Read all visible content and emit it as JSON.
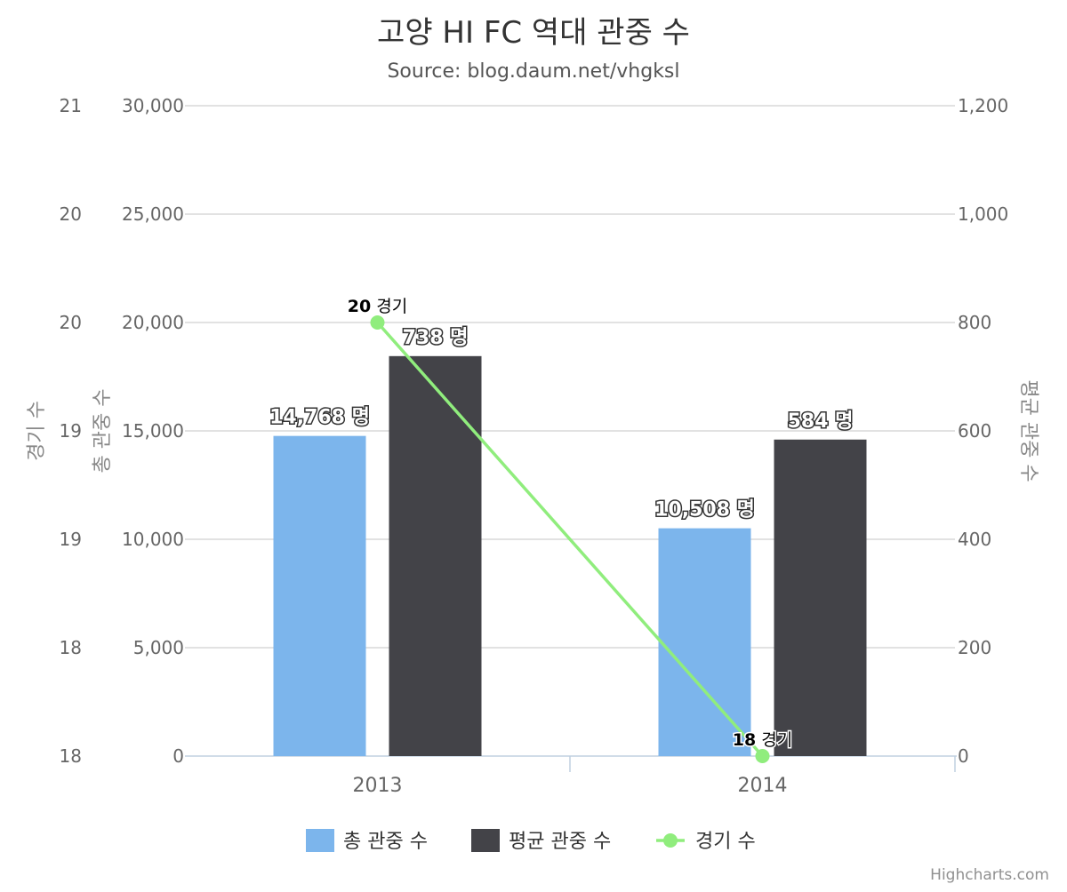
{
  "chart_data": {
    "type": "bar",
    "title": "고양 HI FC 역대 관중 수",
    "subtitle": "Source: blog.daum.net/vhgksl",
    "categories": [
      "2013",
      "2014"
    ],
    "series": [
      {
        "name": "총 관중 수",
        "type": "bar",
        "axis": "left",
        "values": [
          14768,
          10508
        ],
        "labels": [
          "14,768 명",
          "10,508 명"
        ],
        "color": "#7cb5ec"
      },
      {
        "name": "평균 관중 수",
        "type": "bar",
        "axis": "right",
        "values": [
          738,
          584
        ],
        "labels": [
          "738 명",
          "584 명"
        ],
        "color": "#434348"
      },
      {
        "name": "경기 수",
        "type": "line",
        "axis": "outer-left",
        "values": [
          20,
          18
        ],
        "labels": [
          {
            "num": "20",
            "unit": " 경기"
          },
          {
            "num": "18",
            "unit": " 경기"
          }
        ],
        "color": "#90ed7d"
      }
    ],
    "axes": {
      "left": {
        "title": "총 관중 수",
        "min": 0,
        "max": 30000,
        "ticks": [
          "0",
          "5,000",
          "10,000",
          "15,000",
          "20,000",
          "25,000",
          "30,000"
        ]
      },
      "right": {
        "title": "평균 관중 수",
        "min": 0,
        "max": 1200,
        "ticks": [
          "0",
          "200",
          "400",
          "600",
          "800",
          "1,000",
          "1,200"
        ]
      },
      "outer_left": {
        "title": "경기 수",
        "min": 18,
        "max": 21,
        "ticks": [
          "18",
          "18",
          "19",
          "19",
          "20",
          "20",
          "21"
        ]
      }
    },
    "grid": true,
    "legend": "bottom-center"
  },
  "credits": "Highcharts.com"
}
